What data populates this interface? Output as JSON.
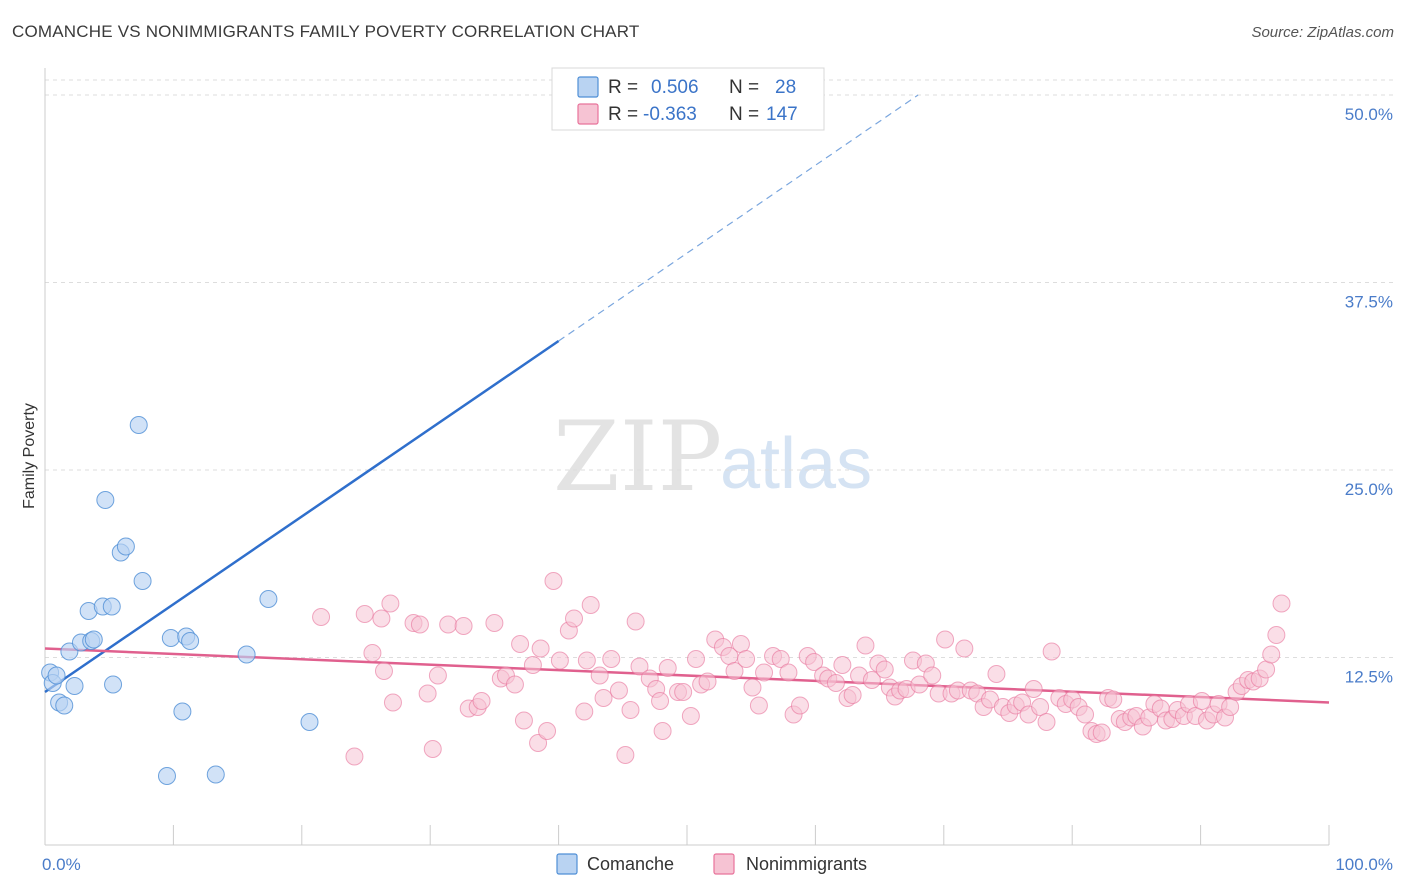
{
  "title": "COMANCHE VS NONIMMIGRANTS FAMILY POVERTY CORRELATION CHART",
  "source": "Source: ZipAtlas.com",
  "watermark": {
    "zip": "ZIP",
    "atlas": "atlas"
  },
  "colors": {
    "comanche": "#4f8fd6",
    "comanche_fill": "#b9d3f2",
    "nonimmigrants": "#e8739b",
    "nonimmigrants_fill": "#f6c3d3",
    "tick_text": "#4a7cc9",
    "grid": "#dddddd"
  },
  "legend": {
    "r_label": "R =",
    "n_label": "N =",
    "comanche_r": "0.506",
    "comanche_n": "28",
    "nonimmigrants_r": "-0.363",
    "nonimmigrants_n": "147"
  },
  "bottom_legend": {
    "comanche": "Comanche",
    "nonimmigrants": "Nonimmigrants"
  },
  "chart_data": {
    "type": "scatter",
    "xlabel": "",
    "ylabel": "Family Poverty",
    "xlim": [
      0,
      100
    ],
    "ylim": [
      0,
      51
    ],
    "x_tick_labels": [
      "0.0%",
      "100.0%"
    ],
    "y_ticks": [
      12.5,
      25.0,
      37.5,
      50.0
    ],
    "y_tick_labels": [
      "12.5%",
      "25.0%",
      "37.5%",
      "50.0%"
    ],
    "grid": true,
    "series": [
      {
        "name": "Comanche",
        "r": 0.506,
        "n": 28,
        "trend": {
          "x0": 0,
          "y0": 10.2,
          "x1": 40,
          "y1": 33.6,
          "dash_to_x": 68,
          "dash_to_y": 50.0
        },
        "points": [
          [
            0.4,
            11.5
          ],
          [
            0.6,
            10.8
          ],
          [
            0.9,
            11.3
          ],
          [
            1.1,
            9.5
          ],
          [
            1.5,
            9.3
          ],
          [
            1.9,
            12.9
          ],
          [
            2.3,
            10.6
          ],
          [
            2.8,
            13.5
          ],
          [
            3.4,
            15.6
          ],
          [
            3.6,
            13.6
          ],
          [
            3.8,
            13.7
          ],
          [
            4.5,
            15.9
          ],
          [
            4.7,
            23.0
          ],
          [
            5.2,
            15.9
          ],
          [
            5.3,
            10.7
          ],
          [
            5.9,
            19.5
          ],
          [
            6.3,
            19.9
          ],
          [
            7.3,
            28.0
          ],
          [
            7.6,
            17.6
          ],
          [
            9.5,
            4.6
          ],
          [
            9.8,
            13.8
          ],
          [
            10.7,
            8.9
          ],
          [
            11.0,
            13.9
          ],
          [
            11.3,
            13.6
          ],
          [
            13.3,
            4.7
          ],
          [
            15.7,
            12.7
          ],
          [
            17.4,
            16.4
          ],
          [
            20.6,
            8.2
          ]
        ]
      },
      {
        "name": "Nonimmigrants",
        "r": -0.363,
        "n": 147,
        "trend": {
          "x0": 0,
          "y0": 13.1,
          "x1": 100,
          "y1": 9.5
        },
        "points": [
          [
            21.5,
            15.2
          ],
          [
            24.1,
            5.9
          ],
          [
            24.9,
            15.4
          ],
          [
            25.5,
            12.8
          ],
          [
            26.2,
            15.1
          ],
          [
            26.4,
            11.6
          ],
          [
            26.9,
            16.1
          ],
          [
            27.1,
            9.5
          ],
          [
            28.7,
            14.8
          ],
          [
            29.2,
            14.7
          ],
          [
            29.8,
            10.1
          ],
          [
            30.2,
            6.4
          ],
          [
            30.6,
            11.3
          ],
          [
            31.4,
            14.7
          ],
          [
            32.6,
            14.6
          ],
          [
            33.0,
            9.1
          ],
          [
            33.7,
            9.2
          ],
          [
            34.0,
            9.6
          ],
          [
            35.0,
            14.8
          ],
          [
            35.5,
            11.1
          ],
          [
            35.9,
            11.3
          ],
          [
            36.6,
            10.7
          ],
          [
            37.0,
            13.4
          ],
          [
            37.3,
            8.3
          ],
          [
            38.0,
            12.0
          ],
          [
            38.4,
            6.8
          ],
          [
            38.6,
            13.1
          ],
          [
            39.1,
            7.6
          ],
          [
            39.6,
            17.6
          ],
          [
            40.1,
            12.3
          ],
          [
            40.8,
            14.3
          ],
          [
            41.2,
            15.1
          ],
          [
            42.0,
            8.9
          ],
          [
            42.2,
            12.3
          ],
          [
            42.5,
            16.0
          ],
          [
            43.2,
            11.3
          ],
          [
            43.5,
            9.8
          ],
          [
            44.1,
            12.4
          ],
          [
            44.7,
            10.3
          ],
          [
            45.2,
            6.0
          ],
          [
            45.6,
            9.0
          ],
          [
            46.0,
            14.9
          ],
          [
            46.3,
            11.9
          ],
          [
            47.1,
            11.1
          ],
          [
            47.6,
            10.4
          ],
          [
            47.9,
            9.6
          ],
          [
            48.1,
            7.6
          ],
          [
            48.5,
            11.8
          ],
          [
            49.3,
            10.2
          ],
          [
            49.7,
            10.2
          ],
          [
            50.3,
            8.6
          ],
          [
            50.7,
            12.4
          ],
          [
            51.1,
            10.7
          ],
          [
            51.6,
            10.9
          ],
          [
            52.2,
            13.7
          ],
          [
            52.8,
            13.2
          ],
          [
            53.3,
            12.6
          ],
          [
            53.7,
            11.6
          ],
          [
            54.2,
            13.4
          ],
          [
            54.6,
            12.4
          ],
          [
            55.1,
            10.5
          ],
          [
            55.6,
            9.3
          ],
          [
            56.0,
            11.5
          ],
          [
            56.7,
            12.6
          ],
          [
            57.3,
            12.4
          ],
          [
            57.9,
            11.5
          ],
          [
            58.3,
            8.7
          ],
          [
            58.8,
            9.3
          ],
          [
            59.4,
            12.6
          ],
          [
            59.9,
            12.2
          ],
          [
            60.6,
            11.3
          ],
          [
            61.0,
            11.1
          ],
          [
            61.6,
            10.8
          ],
          [
            62.1,
            12.0
          ],
          [
            62.5,
            9.8
          ],
          [
            62.9,
            10.0
          ],
          [
            63.4,
            11.3
          ],
          [
            63.9,
            13.3
          ],
          [
            64.4,
            11.0
          ],
          [
            64.9,
            12.1
          ],
          [
            65.4,
            11.7
          ],
          [
            65.8,
            10.5
          ],
          [
            66.2,
            9.9
          ],
          [
            66.6,
            10.3
          ],
          [
            67.1,
            10.4
          ],
          [
            67.6,
            12.3
          ],
          [
            68.1,
            10.7
          ],
          [
            68.6,
            12.1
          ],
          [
            69.1,
            11.3
          ],
          [
            69.6,
            10.1
          ],
          [
            70.1,
            13.7
          ],
          [
            70.6,
            10.1
          ],
          [
            71.1,
            10.3
          ],
          [
            71.6,
            13.1
          ],
          [
            72.1,
            10.3
          ],
          [
            72.6,
            10.1
          ],
          [
            73.1,
            9.2
          ],
          [
            73.6,
            9.7
          ],
          [
            74.1,
            11.4
          ],
          [
            74.6,
            9.2
          ],
          [
            75.1,
            8.8
          ],
          [
            75.6,
            9.3
          ],
          [
            76.1,
            9.5
          ],
          [
            76.6,
            8.7
          ],
          [
            77.0,
            10.4
          ],
          [
            77.5,
            9.2
          ],
          [
            78.0,
            8.2
          ],
          [
            78.4,
            12.9
          ],
          [
            79.0,
            9.8
          ],
          [
            79.5,
            9.4
          ],
          [
            80.0,
            9.7
          ],
          [
            80.5,
            9.2
          ],
          [
            81.0,
            8.7
          ],
          [
            81.5,
            7.6
          ],
          [
            81.9,
            7.4
          ],
          [
            82.3,
            7.5
          ],
          [
            82.8,
            9.8
          ],
          [
            83.2,
            9.7
          ],
          [
            83.7,
            8.4
          ],
          [
            84.1,
            8.2
          ],
          [
            84.6,
            8.5
          ],
          [
            85.0,
            8.6
          ],
          [
            85.5,
            7.9
          ],
          [
            86.0,
            8.5
          ],
          [
            86.4,
            9.4
          ],
          [
            86.9,
            9.1
          ],
          [
            87.3,
            8.3
          ],
          [
            87.8,
            8.4
          ],
          [
            88.2,
            9.0
          ],
          [
            88.7,
            8.6
          ],
          [
            89.1,
            9.4
          ],
          [
            89.6,
            8.6
          ],
          [
            90.1,
            9.6
          ],
          [
            90.5,
            8.3
          ],
          [
            91.0,
            8.7
          ],
          [
            91.4,
            9.4
          ],
          [
            91.9,
            8.5
          ],
          [
            92.3,
            9.2
          ],
          [
            92.8,
            10.2
          ],
          [
            93.2,
            10.6
          ],
          [
            93.7,
            11.0
          ],
          [
            94.1,
            10.9
          ],
          [
            94.6,
            11.1
          ],
          [
            95.1,
            11.7
          ],
          [
            95.5,
            12.7
          ],
          [
            95.9,
            14.0
          ],
          [
            96.3,
            16.1
          ]
        ]
      }
    ]
  }
}
